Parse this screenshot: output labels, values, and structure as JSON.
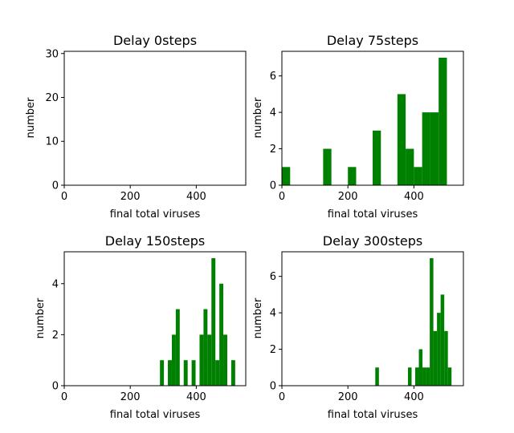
{
  "chart_data": [
    {
      "type": "bar",
      "title": "Delay 0steps",
      "xlabel": "final total viruses",
      "ylabel": "number",
      "xlim": [
        0,
        550
      ],
      "ylim": [
        0,
        30.5
      ],
      "xticks": [
        0,
        200,
        400
      ],
      "yticks": [
        0,
        10,
        20,
        30
      ],
      "bar_color": "#008000",
      "bins": [
        {
          "x0": 0,
          "x1": 0,
          "count": 0
        }
      ]
    },
    {
      "type": "bar",
      "title": "Delay 75steps",
      "xlabel": "final total viruses",
      "ylabel": "number",
      "xlim": [
        0,
        550
      ],
      "ylim": [
        0,
        7.35
      ],
      "xticks": [
        0,
        200,
        400
      ],
      "yticks": [
        0,
        2,
        4,
        6
      ],
      "bar_color": "#008000",
      "bins": [
        {
          "x0": 0,
          "x1": 25,
          "count": 1
        },
        {
          "x0": 125,
          "x1": 150,
          "count": 2
        },
        {
          "x0": 200,
          "x1": 225,
          "count": 1
        },
        {
          "x0": 275,
          "x1": 300,
          "count": 3
        },
        {
          "x0": 350,
          "x1": 375,
          "count": 5
        },
        {
          "x0": 375,
          "x1": 400,
          "count": 2
        },
        {
          "x0": 400,
          "x1": 425,
          "count": 1
        },
        {
          "x0": 425,
          "x1": 450,
          "count": 4
        },
        {
          "x0": 450,
          "x1": 475,
          "count": 4
        },
        {
          "x0": 475,
          "x1": 500,
          "count": 7
        }
      ]
    },
    {
      "type": "bar",
      "title": "Delay 150steps",
      "xlabel": "final total viruses",
      "ylabel": "number",
      "xlim": [
        0,
        550
      ],
      "ylim": [
        0,
        5.25
      ],
      "xticks": [
        0,
        200,
        400
      ],
      "yticks": [
        0,
        2,
        4
      ],
      "bar_color": "#008000",
      "bins": [
        {
          "x0": 290,
          "x1": 302,
          "count": 1
        },
        {
          "x0": 314,
          "x1": 326,
          "count": 1
        },
        {
          "x0": 326,
          "x1": 338,
          "count": 2
        },
        {
          "x0": 338,
          "x1": 350,
          "count": 3
        },
        {
          "x0": 362,
          "x1": 374,
          "count": 1
        },
        {
          "x0": 386,
          "x1": 398,
          "count": 1
        },
        {
          "x0": 410,
          "x1": 422,
          "count": 2
        },
        {
          "x0": 422,
          "x1": 434,
          "count": 3
        },
        {
          "x0": 434,
          "x1": 446,
          "count": 2
        },
        {
          "x0": 446,
          "x1": 458,
          "count": 5
        },
        {
          "x0": 458,
          "x1": 470,
          "count": 1
        },
        {
          "x0": 470,
          "x1": 482,
          "count": 4
        },
        {
          "x0": 482,
          "x1": 494,
          "count": 2
        },
        {
          "x0": 506,
          "x1": 518,
          "count": 1
        }
      ]
    },
    {
      "type": "bar",
      "title": "Delay 300steps",
      "xlabel": "final total viruses",
      "ylabel": "number",
      "xlim": [
        0,
        550
      ],
      "ylim": [
        0,
        7.35
      ],
      "xticks": [
        0,
        200,
        400
      ],
      "yticks": [
        0,
        2,
        4,
        6
      ],
      "bar_color": "#008000",
      "bins": [
        {
          "x0": 283,
          "x1": 294,
          "count": 1
        },
        {
          "x0": 382,
          "x1": 393,
          "count": 1
        },
        {
          "x0": 404,
          "x1": 415,
          "count": 1
        },
        {
          "x0": 415,
          "x1": 426,
          "count": 2
        },
        {
          "x0": 426,
          "x1": 437,
          "count": 1
        },
        {
          "x0": 437,
          "x1": 448,
          "count": 1
        },
        {
          "x0": 448,
          "x1": 459,
          "count": 7
        },
        {
          "x0": 459,
          "x1": 470,
          "count": 3
        },
        {
          "x0": 470,
          "x1": 481,
          "count": 4
        },
        {
          "x0": 481,
          "x1": 492,
          "count": 5
        },
        {
          "x0": 492,
          "x1": 503,
          "count": 3
        },
        {
          "x0": 503,
          "x1": 514,
          "count": 1
        }
      ]
    }
  ]
}
